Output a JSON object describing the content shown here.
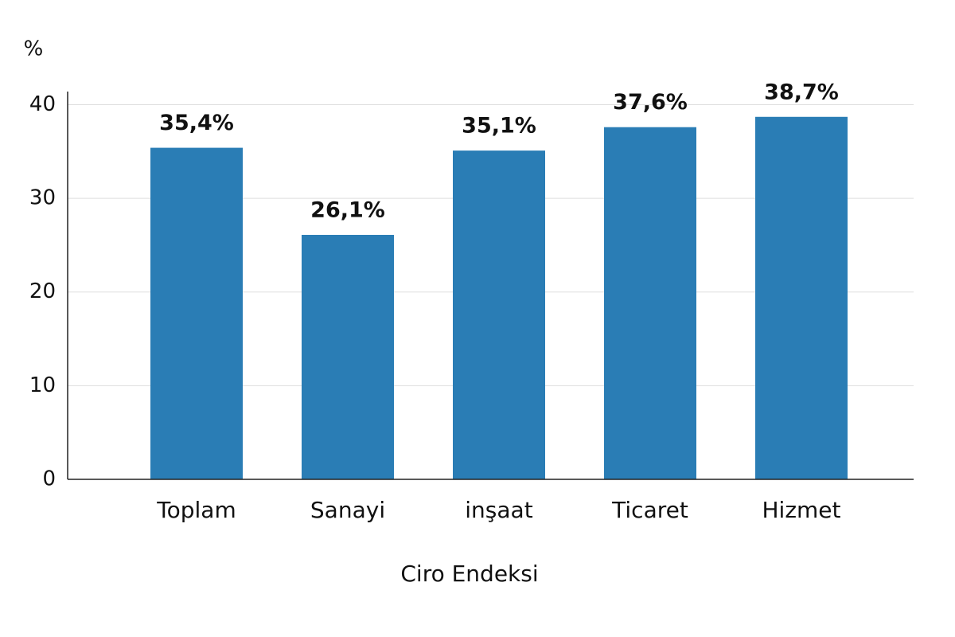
{
  "chart_data": {
    "type": "bar",
    "y_unit": "%",
    "x_axis_label": "Ciro Endeksi",
    "categories": [
      "Toplam",
      "Sanayi",
      "inşaat",
      "Ticaret",
      "Hizmet"
    ],
    "values": [
      35.4,
      26.1,
      35.1,
      37.6,
      38.7
    ],
    "value_labels": [
      "35,4%",
      "26,1%",
      "35,1%",
      "37,6%",
      "38,7%"
    ],
    "color": "#2a7db5",
    "ylim": [
      0,
      41.4
    ],
    "yticks": [
      0,
      10,
      20,
      30,
      40
    ],
    "grid": true
  }
}
